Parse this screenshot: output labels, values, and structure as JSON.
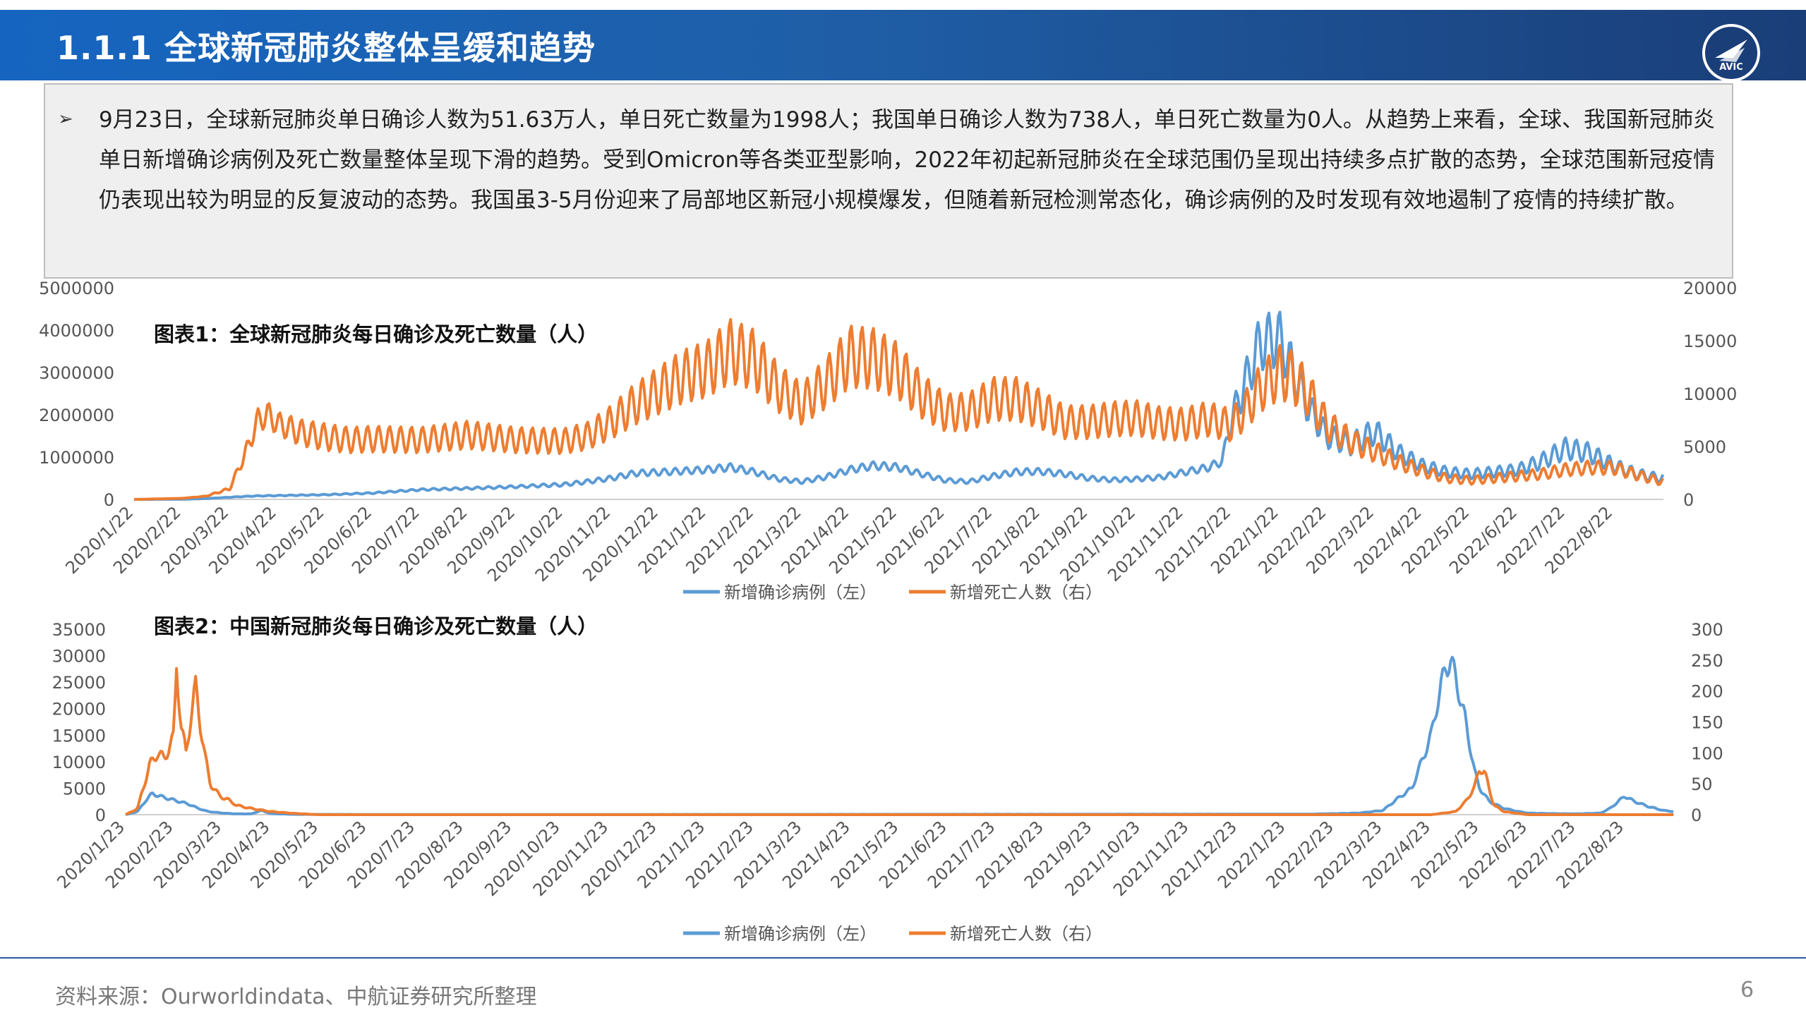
{
  "header": {
    "title": "1.1.1 全球新冠肺炎整体呈缓和趋势",
    "logo_text": "AVIC"
  },
  "summary": {
    "bullet": "➢",
    "text": "9月23日，全球新冠肺炎单日确诊人数为51.63万人，单日死亡数量为1998人；我国单日确诊人数为738人，单日死亡数量为0人。从趋势上来看，全球、我国新冠肺炎单日新增确诊病例及死亡数量整体呈现下滑的趋势。受到Omicron等各类亚型影响，2022年初起新冠肺炎在全球范围仍呈现出持续多点扩散的态势，全球范围新冠疫情仍表现出较为明显的反复波动的态势。我国虽3-5月份迎来了局部地区新冠小规模爆发，但随着新冠检测常态化，确诊病例的及时发现有效地遏制了疫情的持续扩散。"
  },
  "footer": {
    "source": "资料来源：Ourworldindata、中航证券研究所整理",
    "page": "6"
  },
  "colors": {
    "blue": "#5b9bd5",
    "orange": "#ed7d31"
  },
  "chart_data": [
    {
      "type": "line",
      "title": "图表1：全球新冠肺炎每日确诊及死亡数量（人）",
      "x_tick_labels": [
        "2020/1/22",
        "2020/2/22",
        "2020/3/22",
        "2020/4/22",
        "2020/5/22",
        "2020/6/22",
        "2020/7/22",
        "2020/8/22",
        "2020/9/22",
        "2020/10/22",
        "2020/11/22",
        "2020/12/22",
        "2021/1/22",
        "2021/2/22",
        "2021/3/22",
        "2021/4/22",
        "2021/5/22",
        "2021/6/22",
        "2021/7/22",
        "2021/8/22",
        "2021/9/22",
        "2021/10/22",
        "2021/11/22",
        "2021/12/22",
        "2022/1/22",
        "2022/2/22",
        "2022/3/22",
        "2022/4/22",
        "2022/5/22",
        "2022/6/22",
        "2022/7/22",
        "2022/8/22"
      ],
      "x_range_months": [
        0,
        32.05
      ],
      "y_left": {
        "ylim": [
          0,
          5000000
        ],
        "ticks": [
          "0",
          "1000000",
          "2000000",
          "3000000",
          "4000000",
          "5000000"
        ]
      },
      "y_right": {
        "ylim": [
          0,
          20000
        ],
        "ticks": [
          "0",
          "5000",
          "10000",
          "15000",
          "20000"
        ]
      },
      "legend_position": "bottom",
      "series": [
        {
          "name": "新增确诊病例（左）",
          "axis": "left",
          "color": "#5b9bd5",
          "x_month": [
            0,
            1,
            1.5,
            2,
            2.5,
            3,
            4,
            5,
            6,
            7,
            8,
            9,
            9.5,
            10,
            10.5,
            11,
            11.5,
            12,
            12.5,
            13,
            13.5,
            14,
            14.5,
            15,
            15.5,
            16,
            16.5,
            17,
            17.5,
            18,
            18.5,
            19,
            19.5,
            20,
            20.5,
            21,
            21.5,
            22,
            22.5,
            22.8,
            23,
            23.3,
            23.6,
            24,
            24.3,
            24.6,
            25,
            25.5,
            26,
            26.5,
            27,
            27.5,
            28,
            28.5,
            29,
            29.5,
            30,
            30.5,
            31,
            31.5,
            32
          ],
          "values": [
            0,
            2000,
            20000,
            50000,
            80000,
            90000,
            110000,
            150000,
            230000,
            260000,
            300000,
            350000,
            420000,
            500000,
            620000,
            640000,
            670000,
            700000,
            760000,
            650000,
            480000,
            420000,
            530000,
            700000,
            800000,
            760000,
            600000,
            450000,
            420000,
            550000,
            650000,
            660000,
            600000,
            500000,
            460000,
            480000,
            520000,
            640000,
            750000,
            900000,
            1900000,
            2800000,
            3700000,
            3800000,
            3000000,
            2200000,
            1500000,
            1300000,
            1600000,
            1100000,
            800000,
            650000,
            600000,
            650000,
            700000,
            900000,
            1200000,
            1100000,
            800000,
            600000,
            500000
          ],
          "weekly_amplitude": [
            0,
            0,
            0.05,
            0.08,
            0.1,
            0.1,
            0.1,
            0.1,
            0.1,
            0.1,
            0.1,
            0.12,
            0.12,
            0.12,
            0.12,
            0.12,
            0.12,
            0.12,
            0.12,
            0.12,
            0.12,
            0.12,
            0.12,
            0.12,
            0.12,
            0.12,
            0.12,
            0.12,
            0.12,
            0.12,
            0.12,
            0.12,
            0.12,
            0.12,
            0.12,
            0.12,
            0.12,
            0.12,
            0.12,
            0.12,
            0.18,
            0.18,
            0.18,
            0.18,
            0.18,
            0.18,
            0.2,
            0.2,
            0.2,
            0.2,
            0.2,
            0.2,
            0.2,
            0.2,
            0.2,
            0.22,
            0.22,
            0.22,
            0.22,
            0.22,
            0.22
          ]
        },
        {
          "name": "新增死亡人数（右）",
          "axis": "right",
          "color": "#ed7d31",
          "x_month": [
            0,
            1,
            1.5,
            2,
            2.3,
            2.6,
            2.8,
            3,
            3.5,
            4,
            4.5,
            5,
            6,
            7,
            8,
            9,
            9.5,
            10,
            10.5,
            11,
            11.5,
            12,
            12.5,
            13,
            13.5,
            14,
            14.5,
            15,
            15.5,
            16,
            16.5,
            17,
            17.5,
            18,
            18.5,
            19,
            19.5,
            20,
            20.5,
            21,
            21.5,
            22,
            22.5,
            23,
            23.3,
            23.6,
            24,
            24.3,
            24.6,
            25,
            25.5,
            26,
            26.5,
            27,
            27.5,
            28,
            28.5,
            29,
            29.5,
            30,
            30.5,
            31,
            31.5,
            32
          ],
          "values": [
            0,
            100,
            300,
            1000,
            4000,
            7500,
            8000,
            7200,
            6300,
            5900,
            5600,
            5700,
            5600,
            6100,
            5600,
            5500,
            6000,
            7300,
            9000,
            10300,
            11600,
            12300,
            14000,
            13200,
            10500,
            9000,
            11000,
            13500,
            13300,
            12200,
            9800,
            8200,
            8300,
            9500,
            9500,
            8500,
            7300,
            7300,
            7600,
            7700,
            7200,
            7100,
            7600,
            7000,
            8500,
            10500,
            12000,
            11500,
            10000,
            7000,
            5500,
            4500,
            3500,
            2700,
            2000,
            1800,
            2000,
            2200,
            2400,
            2800,
            3000,
            3000,
            2300,
            1700
          ],
          "weekly_amplitude": [
            0,
            0,
            0.1,
            0.15,
            0.15,
            0.15,
            0.15,
            0.15,
            0.2,
            0.22,
            0.22,
            0.22,
            0.22,
            0.22,
            0.22,
            0.22,
            0.22,
            0.22,
            0.22,
            0.22,
            0.22,
            0.22,
            0.22,
            0.22,
            0.22,
            0.22,
            0.22,
            0.22,
            0.22,
            0.22,
            0.22,
            0.22,
            0.22,
            0.22,
            0.22,
            0.22,
            0.22,
            0.22,
            0.22,
            0.22,
            0.22,
            0.22,
            0.22,
            0.22,
            0.22,
            0.22,
            0.22,
            0.22,
            0.22,
            0.22,
            0.22,
            0.22,
            0.22,
            0.22,
            0.22,
            0.22,
            0.22,
            0.22,
            0.22,
            0.22,
            0.22,
            0.22,
            0.22,
            0.22
          ]
        }
      ]
    },
    {
      "type": "line",
      "title": "图表2：中国新冠肺炎每日确诊及死亡数量（人）",
      "x_tick_labels": [
        "2020/1/23",
        "2020/2/23",
        "2020/3/23",
        "2020/4/23",
        "2020/5/23",
        "2020/6/23",
        "2020/7/23",
        "2020/8/23",
        "2020/9/23",
        "2020/10/23",
        "2020/11/23",
        "2020/12/23",
        "2021/1/23",
        "2021/2/23",
        "2021/3/23",
        "2021/4/23",
        "2021/5/23",
        "2021/6/23",
        "2021/7/23",
        "2021/8/23",
        "2021/9/23",
        "2021/10/23",
        "2021/11/23",
        "2021/12/23",
        "2022/1/23",
        "2022/2/23",
        "2022/3/23",
        "2022/4/23",
        "2022/5/23",
        "2022/6/23",
        "2022/7/23",
        "2022/8/23"
      ],
      "x_range_months": [
        0,
        32.02
      ],
      "y_left": {
        "ylim": [
          0,
          35000
        ],
        "ticks": [
          "0",
          "5000",
          "10000",
          "15000",
          "20000",
          "25000",
          "30000",
          "35000"
        ]
      },
      "y_right": {
        "ylim": [
          0,
          300
        ],
        "ticks": [
          "0",
          "50",
          "100",
          "150",
          "200",
          "250",
          "300"
        ]
      },
      "legend_position": "bottom",
      "series": [
        {
          "name": "新增确诊病例（左）",
          "axis": "left",
          "color": "#5b9bd5",
          "x_month": [
            0,
            0.25,
            0.4,
            0.55,
            0.7,
            0.9,
            1.1,
            1.3,
            1.5,
            1.7,
            2,
            2.2,
            2.4,
            2.6,
            2.8,
            3,
            3.5,
            5,
            10,
            20,
            24.5,
            25,
            25.5,
            26,
            26.3,
            26.6,
            26.8,
            27,
            27.1,
            27.2,
            27.3,
            27.4,
            27.5,
            27.6,
            27.7,
            27.8,
            27.9,
            28,
            28.2,
            28.5,
            28.8,
            29,
            29.5,
            30,
            30.5,
            30.7,
            31,
            31.2,
            31.5,
            31.8,
            32
          ],
          "values": [
            0,
            600,
            2500,
            4000,
            3500,
            3000,
            2500,
            2000,
            1200,
            600,
            300,
            200,
            150,
            150,
            800,
            200,
            60,
            40,
            40,
            80,
            100,
            200,
            300,
            800,
            3000,
            5000,
            10000,
            15000,
            20000,
            24000,
            28000,
            29000,
            26000,
            22000,
            18000,
            13000,
            8000,
            5000,
            2500,
            1200,
            600,
            300,
            200,
            150,
            300,
            1200,
            3500,
            2500,
            1500,
            800,
            600
          ],
          "weekly_amplitude": 0.08
        },
        {
          "name": "新增死亡人数（右）",
          "axis": "right",
          "color": "#ed7d31",
          "x_month": [
            0,
            0.25,
            0.35,
            0.5,
            0.65,
            0.8,
            0.9,
            1,
            1.05,
            1.15,
            1.25,
            1.35,
            1.45,
            1.55,
            1.65,
            1.75,
            1.85,
            1.95,
            2.1,
            2.3,
            2.6,
            3,
            3.5,
            4,
            5,
            10,
            20,
            26,
            26.5,
            27,
            27.5,
            27.7,
            27.9,
            28,
            28.1,
            28.2,
            28.3,
            28.5,
            28.8,
            29,
            30,
            31,
            32
          ],
          "values": [
            0,
            10,
            40,
            80,
            100,
            90,
            110,
            125,
            250,
            140,
            100,
            160,
            205,
            145,
            90,
            50,
            40,
            30,
            25,
            15,
            10,
            5,
            2,
            0,
            0,
            0,
            0,
            0,
            0,
            0,
            5,
            20,
            45,
            75,
            70,
            40,
            15,
            5,
            2,
            0,
            0,
            0,
            0
          ],
          "weekly_amplitude": 0.1
        }
      ]
    }
  ]
}
